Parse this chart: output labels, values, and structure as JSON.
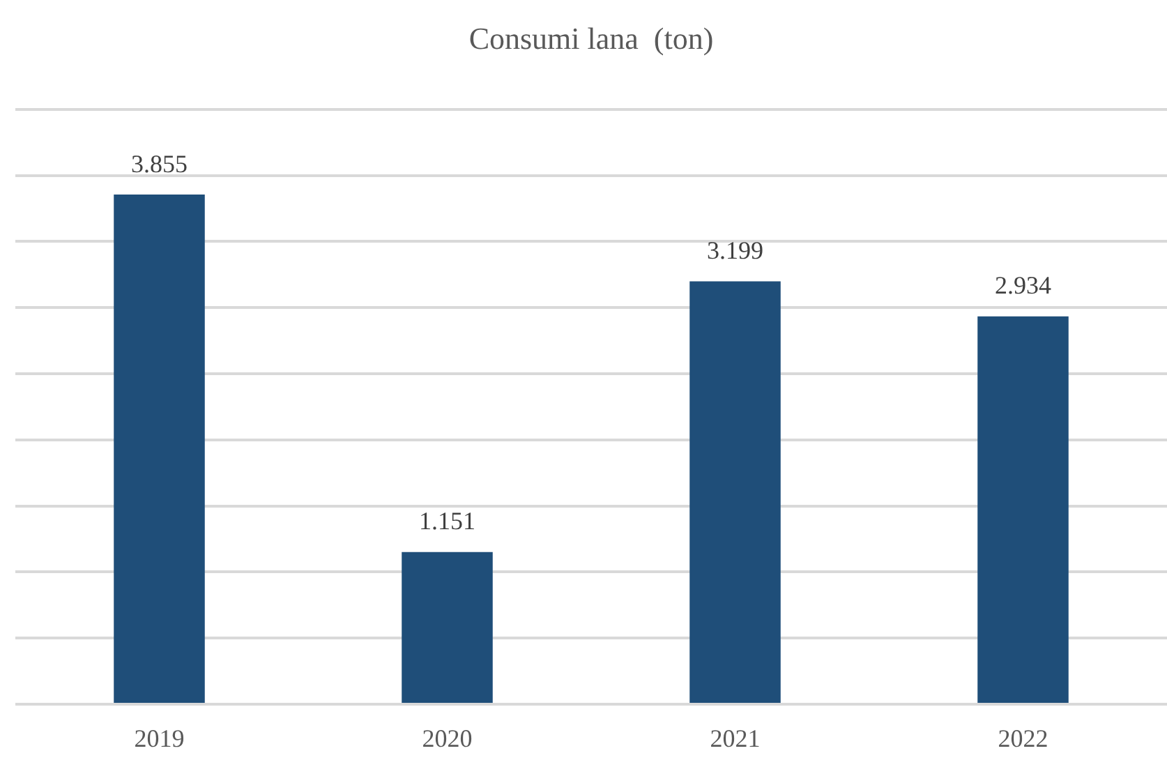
{
  "chart_data": {
    "type": "bar",
    "title": "Consumi lana  (ton)",
    "categories": [
      "2019",
      "2020",
      "2021",
      "2022"
    ],
    "values": [
      3855,
      1151,
      3199,
      2934
    ],
    "value_labels": [
      "3.855",
      "1.151",
      "3.199",
      "2.934"
    ],
    "color": "#1f4e79",
    "ylim": [
      0,
      4500
    ],
    "yticks": [
      {
        "value": 0,
        "label": null
      },
      {
        "value": 500,
        "label": null
      },
      {
        "value": 1000,
        "label": null
      },
      {
        "value": 1500,
        "label": null
      },
      {
        "value": 2000,
        "label": null
      },
      {
        "value": 2500,
        "label": null
      },
      {
        "value": 3000,
        "label": null
      },
      {
        "value": 3500,
        "label": null
      },
      {
        "value": 4000,
        "label": null
      },
      {
        "value": 4500,
        "label": null
      }
    ],
    "grid": "y",
    "tick_labels": "x"
  }
}
